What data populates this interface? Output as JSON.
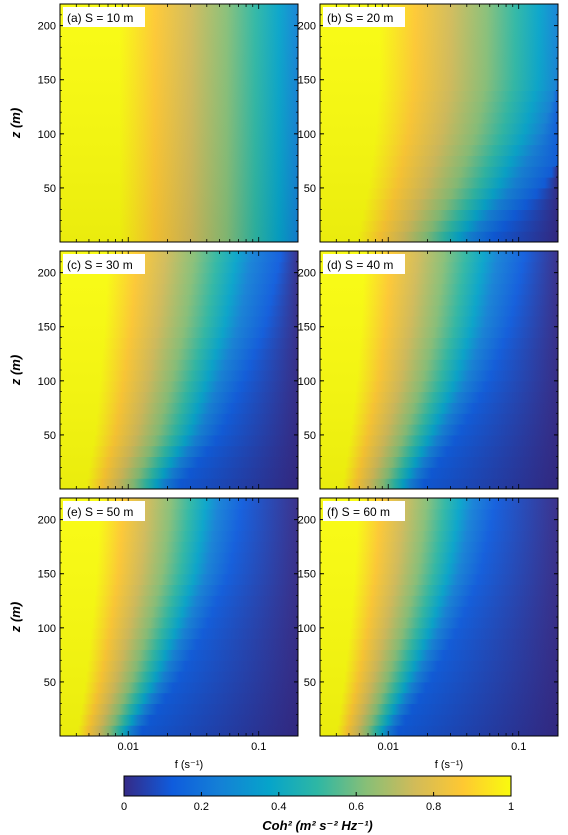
{
  "chart_data": [
    {
      "type": "heatmap",
      "panel": "(a)",
      "label": "S = 10 m",
      "x_scale": "log",
      "xlim": [
        0.003,
        0.2
      ],
      "ylim": [
        0,
        220
      ],
      "coherence_front": [
        {
          "z": 0,
          "f": 0.2
        },
        {
          "z": 50,
          "f": 0.2
        },
        {
          "z": 100,
          "f": 0.2
        },
        {
          "z": 150,
          "f": 0.2
        },
        {
          "z": 220,
          "f": 0.2
        }
      ]
    },
    {
      "type": "heatmap",
      "panel": "(b)",
      "label": "S = 20 m",
      "x_scale": "log",
      "xlim": [
        0.003,
        0.2
      ],
      "ylim": [
        0,
        220
      ],
      "coherence_front": [
        {
          "z": 0,
          "f": 0.04
        },
        {
          "z": 50,
          "f": 0.09
        },
        {
          "z": 100,
          "f": 0.15
        },
        {
          "z": 150,
          "f": 0.2
        },
        {
          "z": 220,
          "f": 0.2
        }
      ]
    },
    {
      "type": "heatmap",
      "panel": "(c)",
      "label": "S = 30 m",
      "x_scale": "log",
      "xlim": [
        0.003,
        0.2
      ],
      "ylim": [
        0,
        220
      ],
      "coherence_front": [
        {
          "z": 0,
          "f": 0.018
        },
        {
          "z": 50,
          "f": 0.035
        },
        {
          "z": 100,
          "f": 0.05
        },
        {
          "z": 150,
          "f": 0.07
        },
        {
          "z": 220,
          "f": 0.09
        }
      ]
    },
    {
      "type": "heatmap",
      "panel": "(d)",
      "label": "S = 40 m",
      "x_scale": "log",
      "xlim": [
        0.003,
        0.2
      ],
      "ylim": [
        0,
        220
      ],
      "coherence_front": [
        {
          "z": 0,
          "f": 0.014
        },
        {
          "z": 50,
          "f": 0.025
        },
        {
          "z": 100,
          "f": 0.04
        },
        {
          "z": 150,
          "f": 0.055
        },
        {
          "z": 220,
          "f": 0.07
        }
      ]
    },
    {
      "type": "heatmap",
      "panel": "(e)",
      "label": "S = 50 m",
      "x_scale": "log",
      "xlim": [
        0.003,
        0.2
      ],
      "ylim": [
        0,
        220
      ],
      "coherence_front": [
        {
          "z": 0,
          "f": 0.01
        },
        {
          "z": 50,
          "f": 0.018
        },
        {
          "z": 100,
          "f": 0.028
        },
        {
          "z": 150,
          "f": 0.04
        },
        {
          "z": 220,
          "f": 0.05
        }
      ]
    },
    {
      "type": "heatmap",
      "panel": "(f)",
      "label": "S = 60 m",
      "x_scale": "log",
      "xlim": [
        0.003,
        0.2
      ],
      "ylim": [
        0,
        220
      ],
      "coherence_front": [
        {
          "z": 0,
          "f": 0.0095
        },
        {
          "z": 50,
          "f": 0.016
        },
        {
          "z": 100,
          "f": 0.025
        },
        {
          "z": 150,
          "f": 0.035
        },
        {
          "z": 220,
          "f": 0.045
        }
      ]
    }
  ],
  "axes": {
    "ylabel": "z (m)",
    "xlabel": "f (s⁻¹)",
    "yticks": [
      50,
      100,
      150,
      200
    ],
    "xticks": [
      0.01,
      0.1
    ],
    "xtick_labels": [
      "0.01",
      "0.1"
    ]
  },
  "colorbar": {
    "label": "Coh² (m² s⁻² Hz⁻¹)",
    "range": [
      0,
      1
    ],
    "ticks": [
      0,
      0.2,
      0.4,
      0.6,
      0.8,
      1
    ],
    "tick_labels": [
      "0",
      "0.2",
      "0.4",
      "0.6",
      "0.8",
      "1"
    ],
    "colors": [
      "#352a87",
      "#0f5cdd",
      "#1481d6",
      "#06a4ca",
      "#2eb7a4",
      "#87bf77",
      "#d1bb59",
      "#fec832",
      "#f9fb0e"
    ]
  }
}
